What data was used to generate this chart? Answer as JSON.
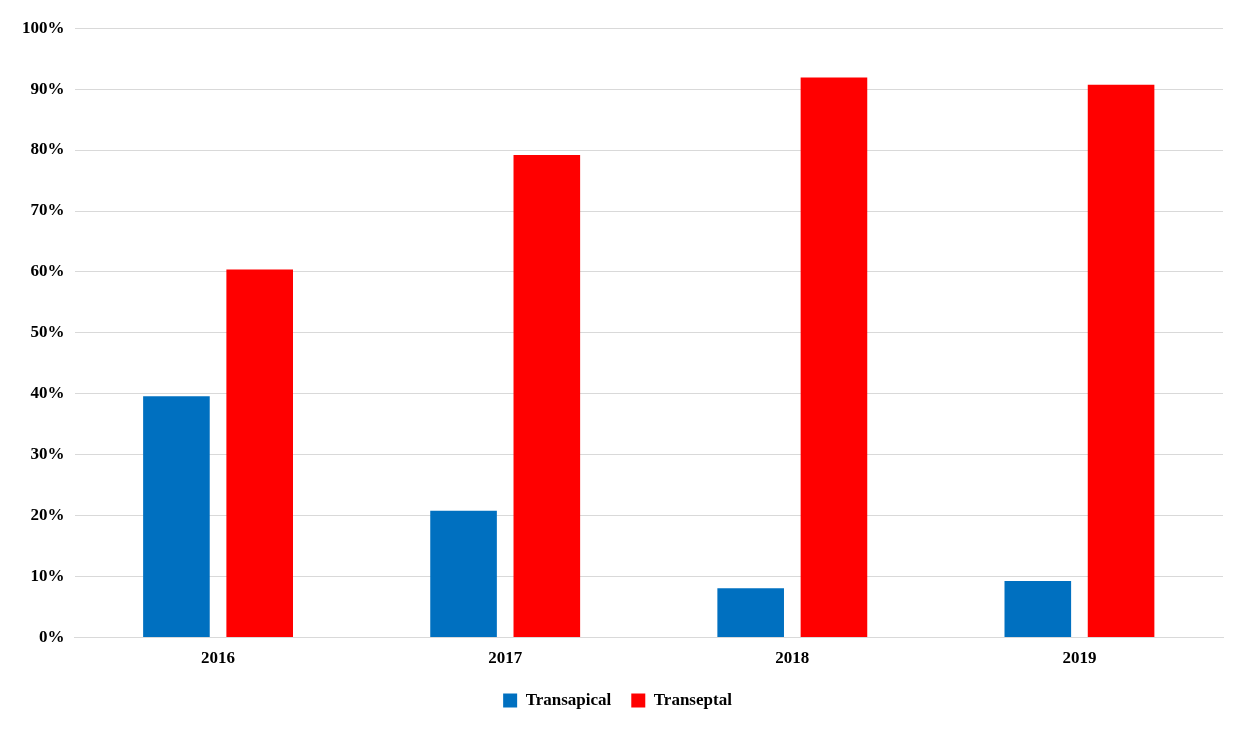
{
  "chart_data": {
    "type": "bar",
    "categories": [
      "2016",
      "2017",
      "2018",
      "2019"
    ],
    "series": [
      {
        "name": "Transapical",
        "color": "#0070c0",
        "values": [
          39.6,
          20.8,
          8.1,
          9.3
        ]
      },
      {
        "name": "Transeptal",
        "color": "#ff0000",
        "values": [
          60.4,
          79.2,
          91.9,
          90.7
        ]
      }
    ],
    "ylim": [
      0,
      100
    ],
    "yticks": [
      {
        "value": 0,
        "label": "0%"
      },
      {
        "value": 10,
        "label": "10%"
      },
      {
        "value": 20,
        "label": "20%"
      },
      {
        "value": 30,
        "label": "30%"
      },
      {
        "value": 40,
        "label": "40%"
      },
      {
        "value": 50,
        "label": "50%"
      },
      {
        "value": 60,
        "label": "60%"
      },
      {
        "value": 70,
        "label": "70%"
      },
      {
        "value": 80,
        "label": "80%"
      },
      {
        "value": 90,
        "label": "90%"
      },
      {
        "value": 100,
        "label": "100%"
      }
    ],
    "grid": "y",
    "legend": "bottom"
  }
}
